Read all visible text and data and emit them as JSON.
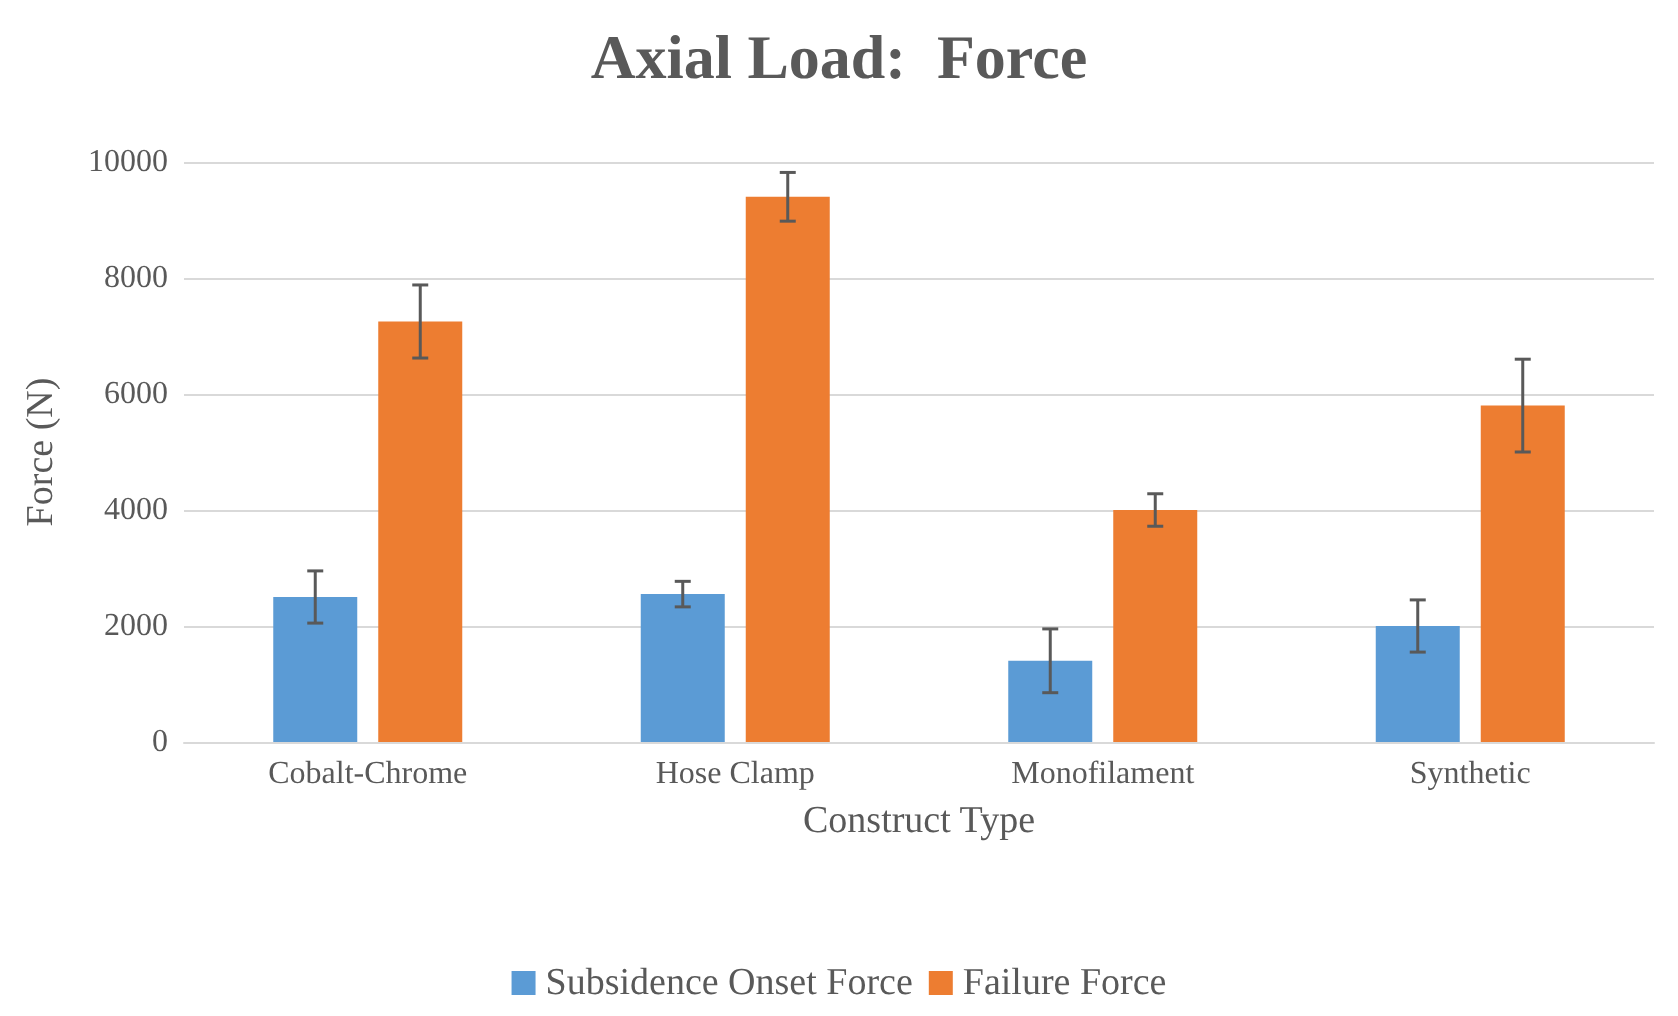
{
  "chart_data": {
    "type": "bar",
    "title": "Axial Load:  Force",
    "xlabel": "Construct Type",
    "ylabel": "Force (N)",
    "categories": [
      "Cobalt-Chrome",
      "Hose Clamp",
      "Monofilament",
      "Synthetic"
    ],
    "series": [
      {
        "name": "Subsidence Onset Force",
        "color": "#5b9bd5",
        "values": [
          2500,
          2550,
          1400,
          2000
        ],
        "errors": [
          450,
          220,
          550,
          450
        ]
      },
      {
        "name": "Failure Force",
        "color": "#ed7d31",
        "values": [
          7250,
          9400,
          4000,
          5800
        ],
        "errors": [
          630,
          420,
          280,
          800
        ]
      }
    ],
    "ylim": [
      0,
      10000
    ],
    "yticks": [
      0,
      2000,
      4000,
      6000,
      8000,
      10000
    ],
    "grid": "y",
    "legend": "bottom"
  }
}
